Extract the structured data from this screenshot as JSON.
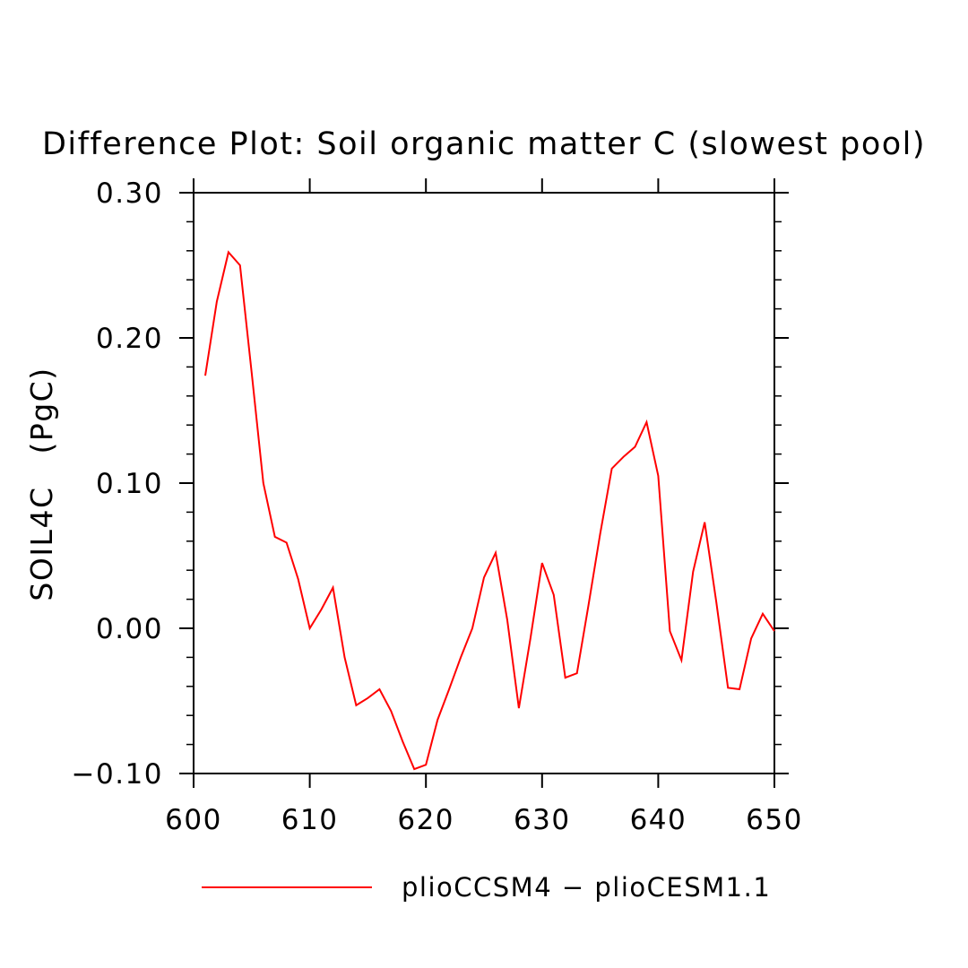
{
  "chart_data": {
    "type": "line",
    "title": "Difference Plot: Soil organic matter C (slowest pool)",
    "xlabel": "",
    "ylabel": "SOIL4C   (PgC)",
    "xlim": [
      600,
      650
    ],
    "ylim": [
      -0.1,
      0.3
    ],
    "x_ticks": [
      "600",
      "610",
      "620",
      "630",
      "640",
      "650"
    ],
    "y_ticks": [
      "−0.10",
      "0.00",
      "0.10",
      "0.20",
      "0.30"
    ],
    "grid": false,
    "legend_position": "bottom",
    "series": [
      {
        "name": "plioCCSM4 − plioCESM1.1",
        "color": "#ff0000",
        "x": [
          601,
          602,
          603,
          604,
          605,
          606,
          607,
          608,
          609,
          610,
          611,
          612,
          613,
          614,
          615,
          616,
          617,
          618,
          619,
          620,
          621,
          622,
          623,
          624,
          625,
          626,
          627,
          628,
          629,
          630,
          631,
          632,
          633,
          634,
          635,
          636,
          637,
          638,
          639,
          640,
          641,
          642,
          643,
          644,
          645,
          646,
          647,
          648,
          649,
          650
        ],
        "y": [
          0.174,
          0.225,
          0.259,
          0.25,
          0.176,
          0.1,
          0.063,
          0.059,
          0.034,
          0.0,
          0.013,
          0.028,
          -0.02,
          -0.053,
          -0.048,
          -0.042,
          -0.057,
          -0.078,
          -0.097,
          -0.094,
          -0.063,
          -0.042,
          -0.02,
          0.0,
          0.035,
          0.052,
          0.006,
          -0.055,
          -0.007,
          0.045,
          0.023,
          -0.034,
          -0.031,
          0.016,
          0.065,
          0.11,
          0.118,
          0.125,
          0.142,
          0.105,
          -0.002,
          -0.022,
          0.039,
          0.073,
          0.018,
          -0.041,
          -0.042,
          -0.007,
          0.01,
          -0.002
        ]
      }
    ]
  }
}
